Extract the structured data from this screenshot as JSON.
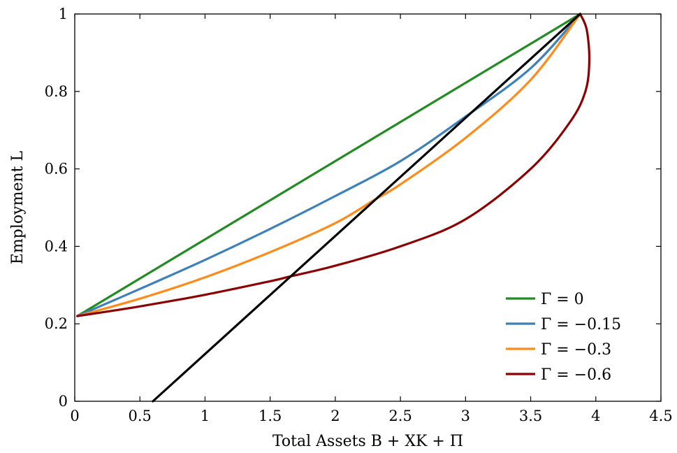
{
  "chart_data": {
    "type": "line",
    "title": "",
    "xlabel": "Total Assets B + XK + Π",
    "ylabel": "Employment L",
    "xlim": [
      0,
      4.5
    ],
    "ylim": [
      0,
      1
    ],
    "xticks": [
      0,
      0.5,
      1,
      1.5,
      2,
      2.5,
      3,
      3.5,
      4,
      4.5
    ],
    "xtick_labels": [
      "0",
      "0.5",
      "1",
      "1.5",
      "2",
      "2.5",
      "3",
      "3.5",
      "4",
      "4.5"
    ],
    "yticks": [
      0,
      0.2,
      0.4,
      0.6,
      0.8,
      1
    ],
    "ytick_labels": [
      "0",
      "0.2",
      "0.4",
      "0.6",
      "0.8",
      "1"
    ],
    "grid": false,
    "legend_position": "bottom-right",
    "series": [
      {
        "name": "Γ = 0",
        "color": "#228b22",
        "x": [
          0.02,
          3.88
        ],
        "y": [
          0.22,
          1.0
        ]
      },
      {
        "name": "Γ = −0.15",
        "color": "#3e80b8",
        "x": [
          0.02,
          0.5,
          1.0,
          1.5,
          2.0,
          2.5,
          3.0,
          3.5,
          3.88
        ],
        "y": [
          0.22,
          0.29,
          0.365,
          0.445,
          0.53,
          0.62,
          0.735,
          0.86,
          1.0
        ]
      },
      {
        "name": "Γ = −0.3",
        "color": "#ff8c1a",
        "x": [
          0.02,
          0.5,
          1.0,
          1.5,
          2.0,
          2.3,
          2.5,
          3.0,
          3.5,
          3.88
        ],
        "y": [
          0.22,
          0.265,
          0.32,
          0.385,
          0.46,
          0.52,
          0.56,
          0.68,
          0.83,
          1.0
        ]
      },
      {
        "name": "Γ = −0.6",
        "color": "#8b0000",
        "x": [
          0.02,
          0.5,
          1.0,
          1.5,
          1.65,
          2.0,
          2.5,
          3.0,
          3.5,
          3.8,
          3.92,
          3.95,
          3.93,
          3.88
        ],
        "y": [
          0.22,
          0.245,
          0.275,
          0.31,
          0.322,
          0.35,
          0.4,
          0.47,
          0.6,
          0.72,
          0.8,
          0.88,
          0.96,
          1.0
        ]
      },
      {
        "name": "",
        "color": "#000000",
        "x": [
          0.6,
          3.88
        ],
        "y": [
          0.0,
          1.0
        ]
      }
    ]
  }
}
